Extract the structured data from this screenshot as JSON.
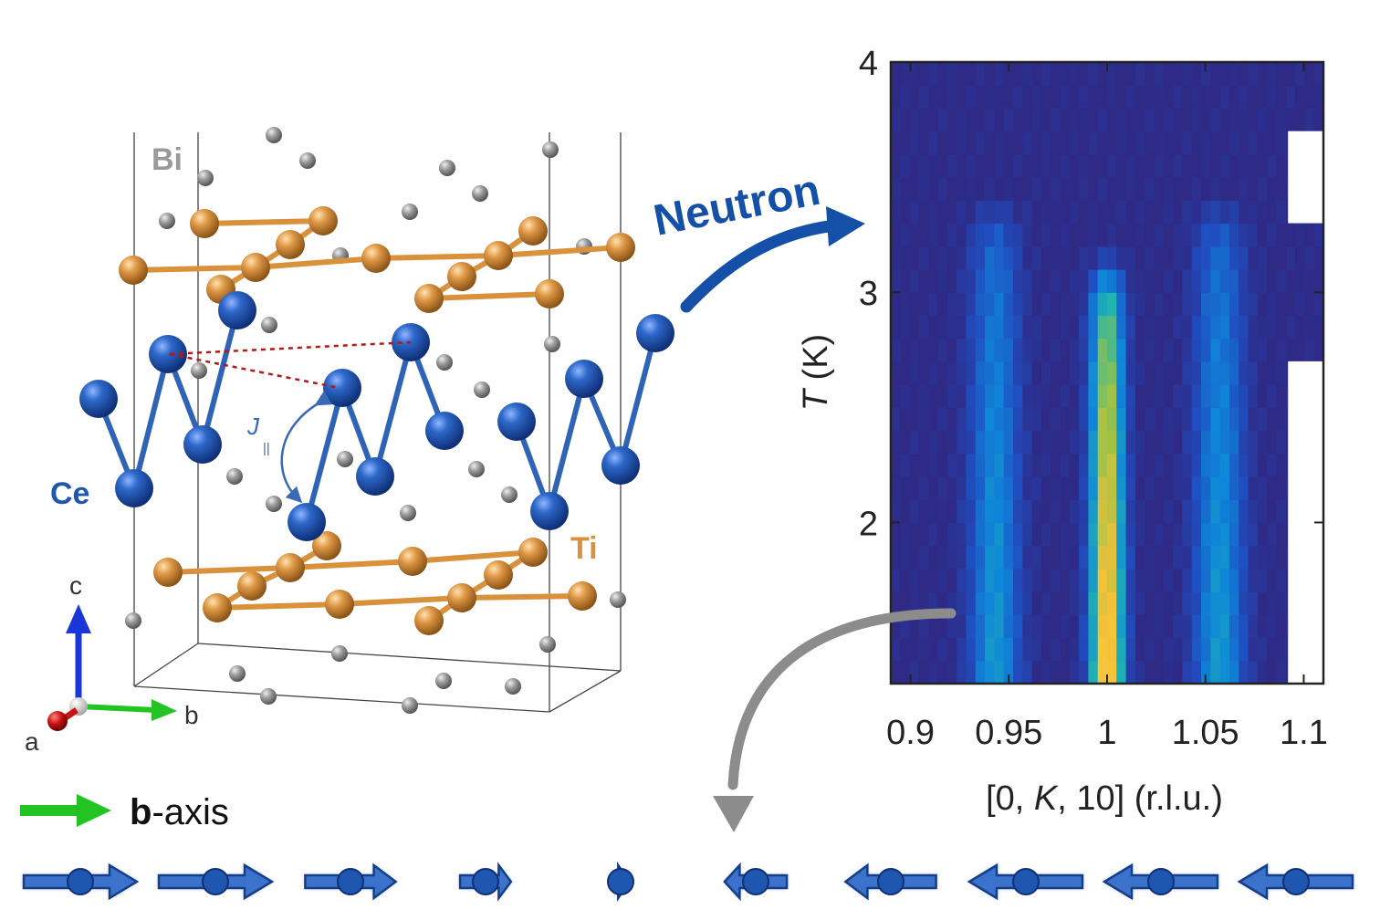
{
  "crystal": {
    "atom_labels": {
      "bi": "Bi",
      "ce": "Ce",
      "ti": "Ti"
    },
    "exchange_label": {
      "main": "J",
      "sub": "||"
    },
    "axes": {
      "c": "c",
      "b": "b",
      "a": "a"
    },
    "colors": {
      "ce": "#1f56b0",
      "ti": "#d9913c",
      "bi": "#9a9a9a",
      "dashed": "#b01a1a",
      "b_axis": "#22c322",
      "c_axis": "#1a35d8",
      "a_axis": "#c81414"
    }
  },
  "neutron_label": "Neutron",
  "neutron_color": "#1450a8",
  "chart_data": {
    "type": "heatmap",
    "x_ticks": [
      "0.9",
      "0.95",
      "1",
      "1.05",
      "1.1"
    ],
    "x_tick_values": [
      0.9,
      0.95,
      1.0,
      1.05,
      1.1
    ],
    "xlim": [
      0.89,
      1.11
    ],
    "y_ticks": [
      "2",
      "3",
      "4"
    ],
    "y_tick_values": [
      2,
      3,
      4
    ],
    "ylim": [
      1.3,
      4.0
    ],
    "xlabel": {
      "pre": "[0, ",
      "italic": "K",
      "post": ", 10] (r.l.u.)"
    },
    "ylabel": {
      "italic": "T",
      "post": " (K)"
    },
    "peaks": [
      {
        "center": 0.943,
        "width": 0.009,
        "intensity": 0.42,
        "onset_T": 3.2
      },
      {
        "center": 1.0,
        "width": 0.006,
        "intensity": 1.0,
        "onset_T": 2.95
      },
      {
        "center": 1.057,
        "width": 0.009,
        "intensity": 0.42,
        "onset_T": 3.2
      }
    ],
    "no_data_regions": [
      {
        "x": [
          1.092,
          1.11
        ],
        "y": [
          1.3,
          2.7
        ]
      },
      {
        "x": [
          1.092,
          1.11
        ],
        "y": [
          3.3,
          3.7
        ]
      }
    ],
    "colormap": [
      "#2e2a86",
      "#1f4fc2",
      "#0f86d9",
      "#20b4b0",
      "#97c248",
      "#f4c13a",
      "#f9d23a"
    ]
  },
  "legend": {
    "bold": "b",
    "rest": "-axis",
    "arrow_color": "#22c322"
  },
  "spin_chain": {
    "moments": [
      1.0,
      1.0,
      0.8,
      0.45,
      0.15,
      -0.55,
      -0.8,
      -1.0,
      -1.0,
      -1.0
    ],
    "color": "#1f56b0"
  }
}
